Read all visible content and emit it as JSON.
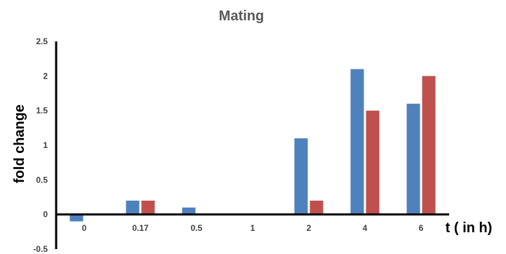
{
  "chart_data": {
    "type": "bar",
    "title": "Mating",
    "xlabel": "t ( in h)",
    "ylabel": "fold change",
    "categories": [
      "0",
      "0.17",
      "0.5",
      "1",
      "2",
      "4",
      "6"
    ],
    "series": [
      {
        "color": "#4F81BD",
        "values": [
          -0.1,
          0.2,
          0.1,
          0,
          1.1,
          2.1,
          1.6
        ]
      },
      {
        "color": "#C0504D",
        "values": [
          0,
          0.2,
          0,
          0,
          0.2,
          1.5,
          2.0
        ]
      }
    ],
    "ylim": [
      -0.5,
      2.5
    ],
    "yticks": [
      "-0.5",
      "0",
      "0.5",
      "1",
      "1.5",
      "2",
      "2.5"
    ],
    "grid": false
  }
}
